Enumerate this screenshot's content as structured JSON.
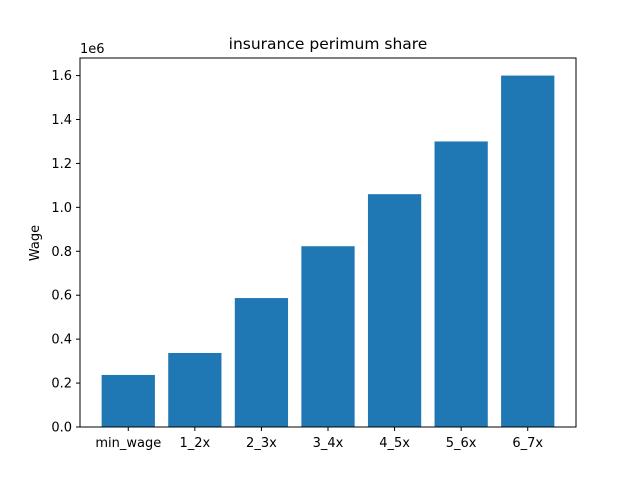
{
  "chart_data": {
    "type": "bar",
    "title": "insurance perimum share",
    "xlabel": "",
    "ylabel": "Wage",
    "offset_text": "1e6",
    "categories": [
      "min_wage",
      "1_2x",
      "2_3x",
      "3_4x",
      "4_5x",
      "5_6x",
      "6_7x"
    ],
    "values": [
      237000,
      337000,
      587000,
      823000,
      1060000,
      1300000,
      1600000
    ],
    "ylim": [
      0,
      1680000
    ],
    "yticks": [
      0,
      200000,
      400000,
      600000,
      800000,
      1000000,
      1200000,
      1400000,
      1600000
    ],
    "ytick_labels": [
      "0.0",
      "0.2",
      "0.4",
      "0.6",
      "0.8",
      "1.0",
      "1.2",
      "1.4",
      "1.6"
    ],
    "bar_color": "#1f77b4",
    "grid": false,
    "legend": "none"
  }
}
